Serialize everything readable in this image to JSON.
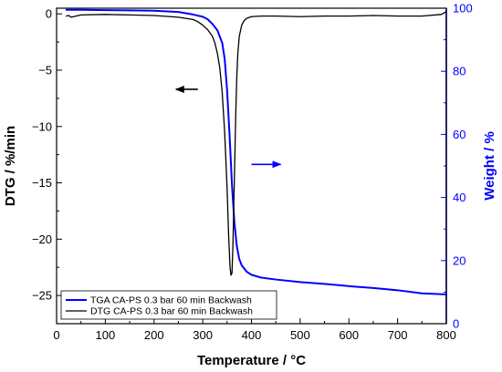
{
  "chart_data": {
    "type": "line",
    "x_axis": {
      "label": "Temperature / °C",
      "range": [
        0,
        800
      ],
      "ticks": [
        0,
        100,
        200,
        300,
        400,
        500,
        600,
        700,
        800
      ]
    },
    "y_left": {
      "label": "DTG / %/min",
      "range": [
        -27.5,
        0.5
      ],
      "ticks": [
        0,
        -5,
        -10,
        -15,
        -20,
        -25
      ],
      "color": "#000000"
    },
    "y_right": {
      "label": "Weight / %",
      "range": [
        0,
        100
      ],
      "ticks": [
        0,
        20,
        40,
        60,
        80,
        100
      ],
      "color": "#0000ff"
    },
    "series": [
      {
        "name": "TGA CA-PS 0.3 bar 60 min Backwash",
        "axis": "right",
        "color": "#0000ff",
        "x": [
          20,
          50,
          100,
          150,
          200,
          250,
          280,
          300,
          310,
          320,
          330,
          340,
          345,
          350,
          355,
          360,
          365,
          370,
          375,
          380,
          390,
          400,
          420,
          450,
          500,
          550,
          600,
          650,
          700,
          750,
          800
        ],
        "y": [
          99.5,
          99.5,
          99.4,
          99.3,
          99.2,
          98.8,
          98.0,
          97.3,
          96.5,
          95.0,
          93.0,
          89.0,
          84.0,
          74.0,
          60.0,
          44.0,
          32.0,
          24.5,
          20.5,
          18.5,
          16.5,
          15.5,
          14.6,
          14.0,
          13.2,
          12.6,
          11.9,
          11.3,
          10.6,
          9.6,
          9.3
        ]
      },
      {
        "name": "DTG CA-PS 0.3 bar 60 min Backwash",
        "axis": "left",
        "color": "#000000",
        "x": [
          20,
          25,
          30,
          50,
          100,
          150,
          200,
          250,
          280,
          290,
          300,
          310,
          320,
          325,
          330,
          335,
          340,
          345,
          350,
          353,
          356,
          358,
          360,
          362,
          364,
          366,
          368,
          370,
          372,
          375,
          380,
          385,
          390,
          400,
          420,
          450,
          500,
          550,
          600,
          650,
          700,
          750,
          790,
          800
        ],
        "y": [
          -0.2,
          -0.15,
          -0.3,
          -0.1,
          -0.05,
          -0.1,
          -0.15,
          -0.3,
          -0.5,
          -0.7,
          -1.0,
          -1.4,
          -2.0,
          -2.6,
          -3.5,
          -4.8,
          -7.0,
          -10.5,
          -15.5,
          -19.5,
          -22.5,
          -23.2,
          -23.0,
          -20.5,
          -16.5,
          -12.5,
          -8.5,
          -5.5,
          -3.5,
          -2.0,
          -1.0,
          -0.6,
          -0.4,
          -0.25,
          -0.2,
          -0.2,
          -0.25,
          -0.2,
          -0.2,
          -0.15,
          -0.2,
          -0.2,
          -0.05,
          0.2
        ]
      }
    ],
    "annotations": [
      {
        "type": "arrow",
        "direction": "left",
        "color": "#000000",
        "axis": "left",
        "x_from": 290,
        "x_to": 245,
        "y": -6.7
      },
      {
        "type": "arrow",
        "direction": "right",
        "color": "#0000ff",
        "axis": "right",
        "x_from": 400,
        "x_to": 460,
        "y": 50.5
      }
    ],
    "legend": {
      "placement": "bottom-left"
    },
    "grid": false
  }
}
